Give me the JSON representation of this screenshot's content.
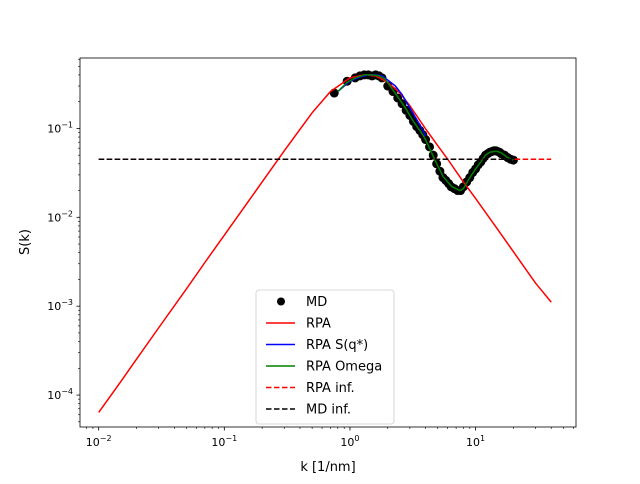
{
  "chart_data": {
    "type": "line",
    "xlabel": "k [1/nm]",
    "ylabel": "S(k)",
    "xscale": "log",
    "yscale": "log",
    "xlim": [
      0.0071,
      63
    ],
    "ylim": [
      4.37e-05,
      0.62
    ],
    "x_ticks": [
      {
        "value": 0.01,
        "base": "10",
        "exp": "−2"
      },
      {
        "value": 0.1,
        "base": "10",
        "exp": "−1"
      },
      {
        "value": 1,
        "base": "10",
        "exp": "0"
      },
      {
        "value": 10,
        "base": "10",
        "exp": "1"
      }
    ],
    "y_ticks": [
      {
        "value": 0.0001,
        "base": "10",
        "exp": "−4"
      },
      {
        "value": 0.001,
        "base": "10",
        "exp": "−3"
      },
      {
        "value": 0.01,
        "base": "10",
        "exp": "−2"
      },
      {
        "value": 0.1,
        "base": "10",
        "exp": "−1"
      }
    ],
    "legend_position": "lower center",
    "series": [
      {
        "name": "MD",
        "kind": "markers",
        "color": "#000000",
        "marker": "circle",
        "x": [
          0.75,
          0.95,
          1.1,
          1.2,
          1.3,
          1.4,
          1.5,
          1.6,
          1.7,
          1.8,
          2.0,
          2.2,
          2.4,
          2.6,
          2.8,
          3.0,
          3.2,
          3.4,
          3.6,
          3.8,
          4.0,
          4.3,
          4.6,
          4.9,
          5.2,
          5.5,
          5.8,
          6.1,
          6.4,
          6.8,
          7.2,
          7.6,
          8.0,
          8.5,
          9.0,
          9.5,
          10.0,
          10.5,
          11.0,
          11.5,
          12.0,
          12.5,
          13.0,
          13.5,
          14.0,
          14.5,
          15.0,
          15.5,
          16.0,
          17.0,
          18.0,
          19.0,
          20.0
        ],
        "y": [
          0.25,
          0.34,
          0.37,
          0.39,
          0.4,
          0.4,
          0.39,
          0.4,
          0.39,
          0.37,
          0.3,
          0.26,
          0.22,
          0.19,
          0.16,
          0.14,
          0.12,
          0.105,
          0.095,
          0.085,
          0.075,
          0.062,
          0.05,
          0.04,
          0.033,
          0.028,
          0.026,
          0.024,
          0.022,
          0.021,
          0.02,
          0.02,
          0.022,
          0.025,
          0.028,
          0.032,
          0.035,
          0.039,
          0.042,
          0.046,
          0.05,
          0.052,
          0.054,
          0.055,
          0.056,
          0.056,
          0.055,
          0.054,
          0.052,
          0.05,
          0.047,
          0.045,
          0.044
        ]
      },
      {
        "name": "RPA",
        "kind": "line",
        "color": "#ff0000",
        "dash": "solid",
        "x": [
          0.01,
          0.015,
          0.02,
          0.03,
          0.05,
          0.07,
          0.1,
          0.15,
          0.2,
          0.3,
          0.5,
          0.7,
          1.0,
          1.3,
          1.6,
          2.0,
          2.5,
          3.0,
          4.0,
          5.0,
          6.0,
          8.0,
          10.0,
          15.0,
          20.0,
          30.0,
          40.0
        ],
        "y": [
          6.37e-05,
          0.000142,
          0.000253,
          0.00057,
          0.00157,
          0.0031,
          0.0063,
          0.0141,
          0.025,
          0.056,
          0.15,
          0.26,
          0.37,
          0.4,
          0.39,
          0.33,
          0.25,
          0.18,
          0.099,
          0.064,
          0.045,
          0.025,
          0.0163,
          0.0073,
          0.0041,
          0.00182,
          0.00111
        ]
      },
      {
        "name": "RPA S(q*)",
        "kind": "line",
        "color": "#0000ff",
        "dash": "solid",
        "x": [
          0.8,
          1.0,
          1.2,
          1.4,
          1.6,
          1.8,
          2.0,
          2.3,
          2.6,
          3.0,
          3.3,
          3.6,
          4.0
        ],
        "y": [
          0.26,
          0.34,
          0.38,
          0.4,
          0.4,
          0.39,
          0.35,
          0.3,
          0.24,
          0.17,
          0.135,
          0.11,
          0.082
        ]
      },
      {
        "name": "RPA Omega",
        "kind": "line",
        "color": "#008000",
        "dash": "solid",
        "x": [
          0.8,
          0.95,
          1.1,
          1.3,
          1.5,
          1.7,
          1.9,
          2.2,
          2.5,
          2.8,
          3.2,
          3.6,
          4.0,
          4.5,
          5.0,
          5.5,
          6.0,
          6.5,
          7.0,
          7.5,
          8.0,
          9.0,
          10.0,
          11.0,
          12.0,
          13.0,
          14.0,
          15.0,
          16.0,
          17.0,
          18.0,
          20.0
        ],
        "y": [
          0.26,
          0.33,
          0.37,
          0.4,
          0.4,
          0.39,
          0.36,
          0.27,
          0.21,
          0.165,
          0.12,
          0.095,
          0.075,
          0.052,
          0.038,
          0.029,
          0.025,
          0.022,
          0.021,
          0.02,
          0.021,
          0.028,
          0.035,
          0.042,
          0.05,
          0.054,
          0.055,
          0.055,
          0.053,
          0.05,
          0.047,
          0.044
        ]
      },
      {
        "name": "RPA inf.",
        "kind": "line",
        "color": "#ff0000",
        "dash": "dashed",
        "x": [
          0.01,
          40.0
        ],
        "y": [
          0.045,
          0.045
        ]
      },
      {
        "name": "MD inf.",
        "kind": "line",
        "color": "#000000",
        "dash": "dashed",
        "x": [
          0.01,
          20.0
        ],
        "y": [
          0.045,
          0.045
        ]
      }
    ]
  }
}
